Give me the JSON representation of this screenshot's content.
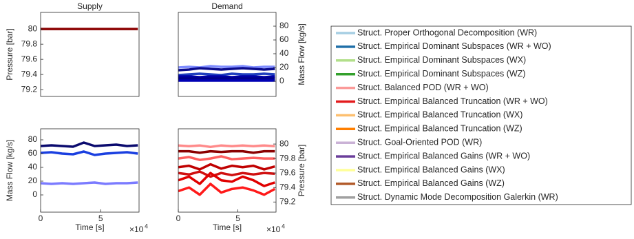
{
  "chart_data": [
    {
      "type": "line",
      "title": "Supply",
      "ylabel": "Pressure [bar]",
      "y_axis_side": "left",
      "x": [
        0,
        9000,
        18000,
        27000,
        36000,
        45000,
        54000,
        63000,
        72000,
        81000
      ],
      "xlim": [
        0,
        82000
      ],
      "ylim": [
        79.11,
        80.22
      ],
      "yticks": [
        79.2,
        79.4,
        79.6,
        79.8,
        80
      ],
      "series": [
        {
          "color": "#8b0000",
          "values": [
            80,
            80,
            80,
            80,
            80,
            80,
            80,
            80,
            80,
            80
          ]
        }
      ]
    },
    {
      "type": "line",
      "title": "Demand",
      "ylabel": "Mass Flow [kg/s]",
      "y_axis_side": "right",
      "x": [
        0,
        9000,
        18000,
        27000,
        36000,
        45000,
        54000,
        63000,
        72000,
        81000
      ],
      "xlim": [
        0,
        82000
      ],
      "ylim": [
        -22,
        100
      ],
      "yticks": [
        0,
        20,
        40,
        60,
        80
      ],
      "series": [
        {
          "color": "#7e8cff",
          "values": [
            20,
            21,
            20,
            22,
            21,
            21,
            22,
            20,
            21,
            21
          ]
        },
        {
          "color": "#0a0a8c",
          "values": [
            16,
            17,
            19,
            18,
            17,
            18,
            19,
            18,
            17,
            18
          ]
        },
        {
          "color": "#1f3fbf",
          "values": [
            9,
            10,
            11,
            10,
            9,
            11,
            10,
            10,
            11,
            10
          ]
        },
        {
          "color": "#0000a8",
          "values": [
            7,
            7,
            6,
            7,
            7,
            6,
            7,
            7,
            6,
            7
          ]
        },
        {
          "color": "#00008b",
          "values": [
            4,
            4,
            4,
            4,
            4,
            4,
            4,
            4,
            4,
            4
          ]
        },
        {
          "color": "#0000b4",
          "values": [
            1,
            1,
            1,
            1,
            1,
            1,
            1,
            1,
            1,
            1
          ]
        }
      ]
    },
    {
      "type": "line",
      "ylabel": "Mass Flow [kg/s]",
      "xlabel": "Time [s]",
      "y_axis_side": "left",
      "x": [
        0,
        9000,
        18000,
        27000,
        36000,
        45000,
        54000,
        63000,
        72000,
        81000
      ],
      "xlim": [
        0,
        82000
      ],
      "xticks": [
        0,
        {
          "value": 50000,
          "label": "5"
        }
      ],
      "x_multiplier": "×10",
      "x_exponent": "4",
      "ylim": [
        -25,
        96
      ],
      "yticks": [
        0,
        20,
        40,
        60,
        80
      ],
      "series": [
        {
          "color": "#0a0a6e",
          "values": [
            71,
            72,
            71,
            70,
            76,
            71,
            72,
            73,
            71,
            72
          ]
        },
        {
          "color": "#1a3fe0",
          "values": [
            61,
            62,
            60,
            59,
            63,
            58,
            60,
            61,
            62,
            60
          ]
        },
        {
          "color": "#7b7bff",
          "values": [
            17,
            16,
            17,
            16,
            17,
            18,
            16,
            17,
            17,
            18
          ]
        }
      ]
    },
    {
      "type": "line",
      "ylabel": "Pressure [bar]",
      "xlabel": "Time [s]",
      "y_axis_side": "right",
      "x": [
        0,
        9000,
        18000,
        27000,
        36000,
        45000,
        54000,
        63000,
        72000,
        81000
      ],
      "xlim": [
        0,
        82000
      ],
      "xticks": [
        0,
        {
          "value": 50000,
          "label": "5"
        }
      ],
      "x_multiplier": "×10",
      "x_exponent": "4",
      "ylim": [
        79.06,
        80.21
      ],
      "yticks": [
        79.2,
        79.4,
        79.6,
        79.8,
        80
      ],
      "series": [
        {
          "color": "#ff8a8a",
          "values": [
            79.98,
            79.97,
            79.98,
            79.96,
            79.98,
            79.97,
            79.98,
            79.97,
            79.98,
            79.97
          ]
        },
        {
          "color": "#8b0000",
          "values": [
            79.9,
            79.9,
            79.88,
            79.9,
            79.89,
            79.9,
            79.9,
            79.88,
            79.9,
            79.9
          ]
        },
        {
          "color": "#ff6060",
          "values": [
            79.8,
            79.82,
            79.78,
            79.8,
            79.83,
            79.79,
            79.8,
            79.81,
            79.8,
            79.8
          ]
        },
        {
          "color": "#c00000",
          "values": [
            79.68,
            79.7,
            79.65,
            79.72,
            79.66,
            79.7,
            79.68,
            79.7,
            79.65,
            79.69
          ]
        },
        {
          "color": "#d01010",
          "values": [
            79.6,
            79.58,
            79.62,
            79.55,
            79.6,
            79.57,
            79.6,
            79.58,
            79.6,
            79.59
          ]
        },
        {
          "color": "#e00000",
          "values": [
            79.5,
            79.55,
            79.45,
            79.6,
            79.5,
            79.48,
            79.55,
            79.5,
            79.42,
            79.47
          ]
        },
        {
          "color": "#ff1a1a",
          "values": [
            79.35,
            79.4,
            79.3,
            79.45,
            79.33,
            79.38,
            79.4,
            79.36,
            79.3,
            79.38
          ]
        }
      ]
    }
  ],
  "legend": [
    {
      "name": "Struct. Proper Orthogonal Decomposition (WR)",
      "color": "#a6cee3"
    },
    {
      "name": "Struct. Empirical Dominant Subspaces (WR + WO)",
      "color": "#1f6fa8"
    },
    {
      "name": "Struct. Empirical Dominant Subspaces (WX)",
      "color": "#b2df8a"
    },
    {
      "name": "Struct. Empirical Dominant Subspaces (WZ)",
      "color": "#33a02c"
    },
    {
      "name": "Struct. Balanced POD (WR + WO)",
      "color": "#fb9a99"
    },
    {
      "name": "Struct. Empirical Balanced Truncation (WR + WO)",
      "color": "#e31a1c"
    },
    {
      "name": "Struct. Empirical Balanced Truncation (WX)",
      "color": "#fdbf6f"
    },
    {
      "name": "Struct. Empirical Balanced Truncation (WZ)",
      "color": "#ff7f00"
    },
    {
      "name": "Struct. Goal-Oriented POD (WR)",
      "color": "#cab2d6"
    },
    {
      "name": "Struct. Empirical Balanced Gains (WR + WO)",
      "color": "#6a3d9a"
    },
    {
      "name": "Struct. Empirical Balanced Gains (WX)",
      "color": "#ffff99"
    },
    {
      "name": "Struct. Empirical Balanced Gains (WZ)",
      "color": "#b15928"
    },
    {
      "name": "Struct. Dynamic Mode Decomposition Galerkin (WR)",
      "color": "#a0a0a0"
    }
  ]
}
